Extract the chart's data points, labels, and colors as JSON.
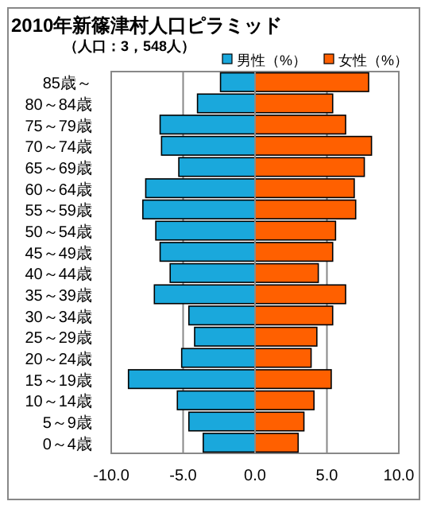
{
  "chart_data": {
    "type": "bar",
    "orientation": "horizontal",
    "stacked": true,
    "title": "2010年新篠津村人口ピラミッド",
    "subtitle": "（人口：3，548人）",
    "categories": [
      "85歳～",
      "80～84歳",
      "75～79歳",
      "70～74歳",
      "65～69歳",
      "60～64歳",
      "55～59歳",
      "50～54歳",
      "45～49歳",
      "40～44歳",
      "35～39歳",
      "30～34歳",
      "25～29歳",
      "20～24歳",
      "15～19歳",
      "10～14歳",
      "5～9歳",
      "0～4歳"
    ],
    "series": [
      {
        "name": "男性（%）",
        "color": "#1aa8dc",
        "values": [
          -2.4,
          -4.0,
          -6.6,
          -6.5,
          -5.3,
          -7.6,
          -7.8,
          -6.9,
          -6.6,
          -5.9,
          -7.0,
          -4.6,
          -4.2,
          -5.1,
          -8.8,
          -5.4,
          -4.6,
          -3.6
        ]
      },
      {
        "name": "女性（%）",
        "color": "#ff6000",
        "values": [
          7.9,
          5.4,
          6.3,
          8.1,
          7.6,
          6.9,
          7.0,
          5.6,
          5.4,
          4.4,
          6.3,
          5.4,
          4.3,
          3.9,
          5.3,
          4.1,
          3.4,
          3.0
        ]
      }
    ],
    "xlim": [
      -10,
      10
    ],
    "xticks": [
      {
        "value": -10,
        "label": "-10.0"
      },
      {
        "value": -5,
        "label": "-5.0"
      },
      {
        "value": 0,
        "label": "0.0"
      },
      {
        "value": 5,
        "label": "5.0"
      },
      {
        "value": 10,
        "label": "10.0"
      }
    ],
    "grid": "x",
    "legend": "top right"
  }
}
